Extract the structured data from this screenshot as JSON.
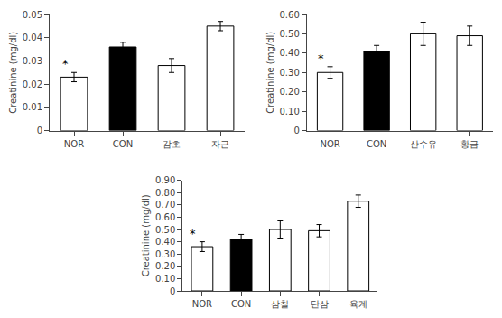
{
  "chart_data": [
    {
      "type": "bar",
      "ylabel": "Creatinine (mg/dl)",
      "categories": [
        "NOR",
        "CON",
        "감초",
        "자근"
      ],
      "values": [
        0.023,
        0.036,
        0.028,
        0.045
      ],
      "errors": [
        0.002,
        0.002,
        0.003,
        0.002
      ],
      "colors": [
        "white",
        "black",
        "white",
        "white"
      ],
      "ylim": [
        0,
        0.05
      ],
      "yticks": [
        0,
        0.01,
        0.02,
        0.03,
        0.04,
        0.05
      ],
      "grid": false,
      "annotations": [
        {
          "text": "*",
          "category": "NOR"
        }
      ]
    },
    {
      "type": "bar",
      "ylabel": "Creatinine (mg/dl)",
      "categories": [
        "NOR",
        "CON",
        "산수유",
        "황금"
      ],
      "values": [
        0.3,
        0.41,
        0.5,
        0.49
      ],
      "errors": [
        0.03,
        0.03,
        0.06,
        0.05
      ],
      "colors": [
        "white",
        "black",
        "white",
        "white"
      ],
      "ylim": [
        0,
        0.6
      ],
      "yticks": [
        0,
        {
          "value": 0.1,
          "label": "0.10"
        },
        {
          "value": 0.2,
          "label": "0.20"
        },
        {
          "value": 0.3,
          "label": "0.30"
        },
        {
          "value": 0.4,
          "label": "0.40"
        },
        {
          "value": 0.5,
          "label": "0.50"
        },
        {
          "value": 0.6,
          "label": "0.60"
        }
      ],
      "grid": false,
      "annotations": [
        {
          "text": "*",
          "category": "NOR"
        }
      ]
    },
    {
      "type": "bar",
      "ylabel": "Creatinine (mg/dl)",
      "categories": [
        "NOR",
        "CON",
        "삼칠",
        "단삼",
        "육계"
      ],
      "values": [
        0.36,
        0.42,
        0.5,
        0.49,
        0.73
      ],
      "errors": [
        0.04,
        0.04,
        0.07,
        0.05,
        0.05
      ],
      "colors": [
        "white",
        "black",
        "white",
        "white",
        "white"
      ],
      "ylim": [
        0,
        0.9
      ],
      "yticks": [
        0,
        {
          "value": 0.1,
          "label": "0.10"
        },
        {
          "value": 0.2,
          "label": "0.20"
        },
        {
          "value": 0.3,
          "label": "0.30"
        },
        {
          "value": 0.4,
          "label": "0.40"
        },
        {
          "value": 0.5,
          "label": "0.50"
        },
        {
          "value": 0.6,
          "label": "0.60"
        },
        {
          "value": 0.7,
          "label": "0.70"
        },
        {
          "value": 0.8,
          "label": "0.80"
        },
        {
          "value": 0.9,
          "label": "0.90"
        }
      ],
      "grid": false,
      "annotations": [
        {
          "text": "*",
          "category": "NOR"
        }
      ]
    }
  ]
}
